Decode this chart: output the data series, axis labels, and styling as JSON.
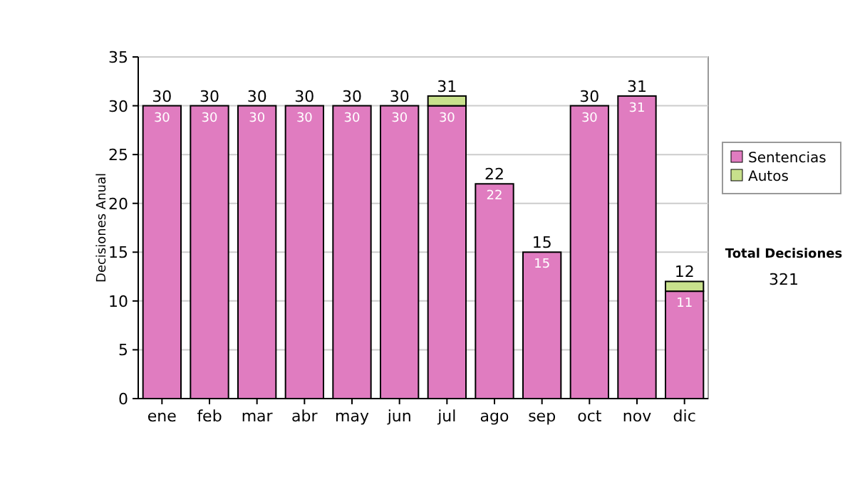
{
  "chart_data": {
    "type": "bar",
    "stacked": true,
    "ylabel": "Decisiones Anual",
    "categories": [
      "ene",
      "feb",
      "mar",
      "abr",
      "may",
      "jun",
      "jul",
      "ago",
      "sep",
      "oct",
      "nov",
      "dic"
    ],
    "series": [
      {
        "name": "Sentencias",
        "color": "#e07cc0",
        "values": [
          30,
          30,
          30,
          30,
          30,
          30,
          30,
          22,
          15,
          30,
          31,
          11
        ],
        "value_labels": [
          "30",
          "30",
          "30",
          "30",
          "30",
          "30",
          "30",
          "22",
          "15",
          "30",
          "31",
          "11"
        ]
      },
      {
        "name": "Autos",
        "color": "#c8e08c",
        "values": [
          0,
          0,
          0,
          0,
          0,
          0,
          1,
          0,
          0,
          0,
          0,
          1
        ]
      }
    ],
    "totals": [
      "30",
      "30",
      "30",
      "30",
      "30",
      "30",
      "31",
      "22",
      "15",
      "30",
      "31",
      "12"
    ],
    "ylim": [
      0,
      35
    ],
    "yticks": [
      0,
      5,
      10,
      15,
      20,
      25,
      30,
      35
    ],
    "grid": "y",
    "legend": "right",
    "annotations": [
      "Total Decisiones",
      "321"
    ]
  }
}
